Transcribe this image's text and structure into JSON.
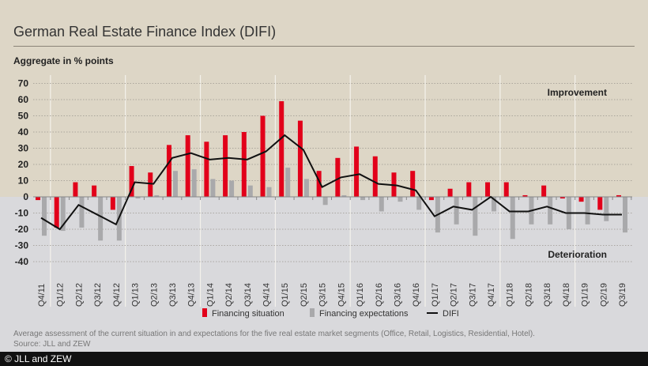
{
  "title": "German Real Estate Finance Index (DIFI)",
  "subtitle": "Aggregate in % points",
  "note": "Average assessment of the current situation in and expectations for the five real estate market segments (Office, Retail, Logistics, Residential, Hotel).",
  "source": "Source: JLL and ZEW",
  "footer": "© JLL and ZEW",
  "chart_data": {
    "type": "bar+line",
    "ylim": [
      -40,
      70
    ],
    "yticks": [
      70,
      60,
      50,
      40,
      30,
      20,
      10,
      0,
      -10,
      -20,
      -30,
      -40
    ],
    "grid": true,
    "legend_placement": "bottom",
    "annotations": [
      "Improvement",
      "Deterioration"
    ],
    "colors": {
      "financing_situation": "#e2001a",
      "financing_expectations": "#a9a9ab",
      "difi": "#111111",
      "improvement_bg": "#ddd6c6",
      "deterioration_bg": "#d9d9dc"
    },
    "categories": [
      "Q4/11",
      "Q1/12",
      "Q2/12",
      "Q3/12",
      "Q4/12",
      "Q1/13",
      "Q2/13",
      "Q3/13",
      "Q4/13",
      "Q1/14",
      "Q2/14",
      "Q3/14",
      "Q4/14",
      "Q1/15",
      "Q2/15",
      "Q3/15",
      "Q4/15",
      "Q1/16",
      "Q2/16",
      "Q3/16",
      "Q4/16",
      "Q1/17",
      "Q2/17",
      "Q3/17",
      "Q4/17",
      "Q1/18",
      "Q2/18",
      "Q3/18",
      "Q4/18",
      "Q1/19",
      "Q2/19",
      "Q3/19"
    ],
    "series": [
      {
        "name": "Financing situation",
        "kind": "bar",
        "values": [
          -2,
          -19,
          9,
          7,
          -8,
          19,
          15,
          32,
          38,
          34,
          38,
          40,
          50,
          59,
          47,
          16,
          24,
          31,
          25,
          15,
          16,
          -2,
          5,
          9,
          9,
          9,
          1,
          7,
          -1,
          -3,
          -8,
          1
        ]
      },
      {
        "name": "Financing expectations",
        "kind": "bar",
        "values": [
          -24,
          -21,
          -19,
          -27,
          -27,
          -1,
          1,
          16,
          17,
          11,
          10,
          7,
          6,
          18,
          11,
          -5,
          1,
          -2,
          -9,
          -3,
          -8,
          -22,
          -17,
          -24,
          -9,
          -26,
          -17,
          -17,
          -20,
          -17,
          -15,
          -22
        ]
      },
      {
        "name": "DIFI",
        "kind": "line",
        "values": [
          -13,
          -20,
          -5,
          -11,
          -17,
          9,
          8,
          24,
          27,
          23,
          24,
          23,
          28,
          38,
          29,
          6,
          12,
          14,
          8,
          7,
          4,
          -12,
          -6,
          -8,
          0,
          -9,
          -9,
          -6,
          -10,
          -10,
          -11,
          -11
        ]
      }
    ]
  }
}
